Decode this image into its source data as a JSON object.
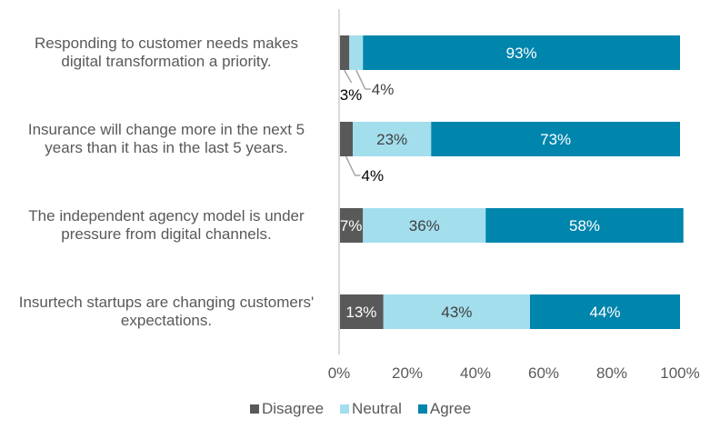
{
  "chart_data": {
    "type": "bar",
    "orientation": "horizontal",
    "stacked": true,
    "categories": [
      "Responding to customer needs makes digital transformation a priority.",
      "Insurance will change more in the next 5 years than it has in the last 5 years.",
      "The independent agency model is under pressure from digital channels.",
      "Insurtech startups are changing customers' expectations."
    ],
    "category_lines": [
      [
        "Responding to customer needs makes",
        "digital transformation a priority."
      ],
      [
        "Insurance will change more in the next 5",
        "years than it has in the last 5 years."
      ],
      [
        "The independent agency model is under",
        "pressure from digital channels."
      ],
      [
        "Insurtech startups are changing customers'",
        "expectations."
      ]
    ],
    "series": [
      {
        "name": "Disagree",
        "color": "#595959",
        "values": [
          3,
          4,
          7,
          13
        ],
        "labels": [
          "3%",
          "4%",
          "7%",
          "13%"
        ]
      },
      {
        "name": "Neutral",
        "color": "#a3deed",
        "values": [
          4,
          23,
          36,
          43
        ],
        "labels": [
          "4%",
          "23%",
          "36%",
          "43%"
        ]
      },
      {
        "name": "Agree",
        "color": "#0085ad",
        "values": [
          93,
          73,
          58,
          44
        ],
        "labels": [
          "93%",
          "73%",
          "58%",
          "44%"
        ]
      }
    ],
    "xlim": [
      0,
      100
    ],
    "xticks": [
      "0%",
      "20%",
      "40%",
      "60%",
      "80%",
      "100%"
    ],
    "title": "",
    "xlabel": "",
    "ylabel": "",
    "grid": false,
    "legend": "bottom"
  }
}
